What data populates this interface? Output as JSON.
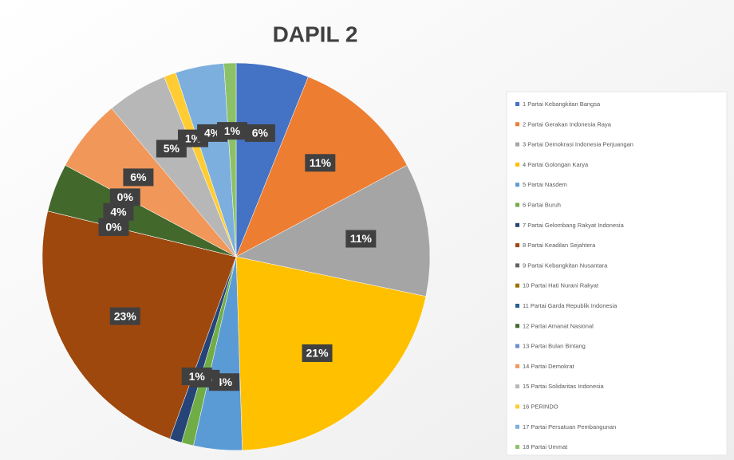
{
  "chart_data": {
    "type": "pie",
    "title": "DAPIL 2",
    "categories": [
      "1 Partai Kebangkitan Bangsa",
      "2 Partai Gerakan Indonesia Raya",
      "3 Partai Demokrasi Indonesia Perjuangan",
      "4 Partai Golongan Karya",
      "5 Partai Nasdem",
      "6 Partai Buruh",
      "7 Partai Gelombang Rakyat Indonesia",
      "8 Partai Keadilan Sejahtera",
      "9 Partai Kebangkitan Nusantara",
      "10 Partai Hati Nurani Rakyat",
      "11 Partai Garda Republik Indonesia",
      "12 Partai Amanat Nasional",
      "13 Partai Bulan Bintang",
      "14 Partai Demokrat",
      "15 Partai Solidaritas Indonesia",
      "16 PERINDO",
      "17 Partai Persatuan Pembangunan",
      "18 Partai Ummat"
    ],
    "values": [
      6,
      11,
      11,
      21,
      4,
      1,
      1,
      23,
      0,
      0,
      0,
      4,
      0,
      6,
      5,
      1,
      4,
      1
    ],
    "value_labels": [
      "6%",
      "11%",
      "11%",
      "21%",
      "4%",
      "1%",
      "1%",
      "23%",
      "0%",
      "0%",
      "0%",
      "4%",
      "0%",
      "6%",
      "5%",
      "1%",
      "4%",
      "1%"
    ],
    "colors": [
      "#4472c4",
      "#ed7d31",
      "#a5a5a5",
      "#ffc000",
      "#5b9bd5",
      "#70ad47",
      "#264478",
      "#9e480e",
      "#636363",
      "#997300",
      "#255e91",
      "#43682b",
      "#698ed0",
      "#f1975a",
      "#b7b7b7",
      "#ffcd33",
      "#7cafdd",
      "#8cc168"
    ],
    "legend": "right"
  }
}
